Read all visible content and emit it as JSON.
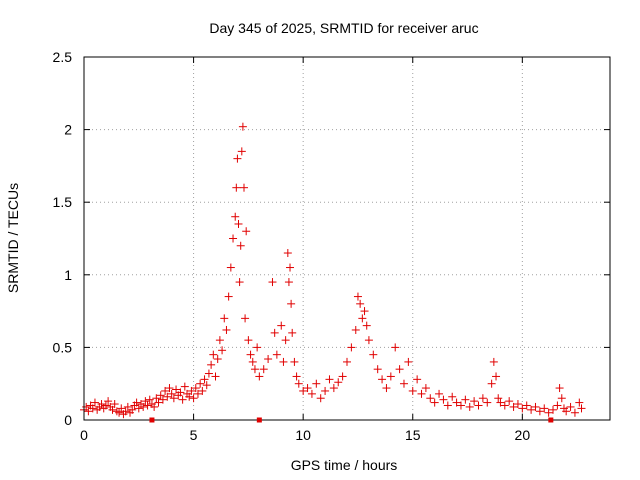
{
  "chart_data": {
    "type": "scatter",
    "title": "Day 345 of 2025, SRMTID for receiver aruc",
    "xlabel": "GPS time / hours",
    "ylabel": "SRMTID / TECUs",
    "xlim": [
      0,
      24
    ],
    "ylim": [
      0,
      2.5
    ],
    "x_ticks": [
      0,
      5,
      10,
      15,
      20
    ],
    "x_tick_labels": [
      "0",
      "5",
      "10",
      "15",
      "20"
    ],
    "y_ticks": [
      0,
      0.5,
      1,
      1.5,
      2,
      2.5
    ],
    "y_tick_labels": [
      "0",
      "0.5",
      "1",
      "1.5",
      "2",
      "2.5"
    ],
    "grid": true,
    "marker": "+",
    "series_color": "#e00000",
    "series": [
      {
        "name": "SRMTID",
        "points": [
          [
            0.0,
            0.07
          ],
          [
            0.1,
            0.09
          ],
          [
            0.2,
            0.06
          ],
          [
            0.3,
            0.1
          ],
          [
            0.4,
            0.08
          ],
          [
            0.5,
            0.12
          ],
          [
            0.6,
            0.07
          ],
          [
            0.7,
            0.09
          ],
          [
            0.8,
            0.11
          ],
          [
            0.9,
            0.08
          ],
          [
            1.0,
            0.1
          ],
          [
            1.1,
            0.13
          ],
          [
            1.2,
            0.09
          ],
          [
            1.3,
            0.07
          ],
          [
            1.4,
            0.11
          ],
          [
            1.5,
            0.06
          ],
          [
            1.6,
            0.05
          ],
          [
            1.7,
            0.08
          ],
          [
            1.8,
            0.04
          ],
          [
            1.9,
            0.06
          ],
          [
            2.0,
            0.09
          ],
          [
            2.1,
            0.05
          ],
          [
            2.2,
            0.07
          ],
          [
            2.3,
            0.1
          ],
          [
            2.4,
            0.12
          ],
          [
            2.5,
            0.08
          ],
          [
            2.6,
            0.11
          ],
          [
            2.7,
            0.09
          ],
          [
            2.8,
            0.13
          ],
          [
            2.9,
            0.1
          ],
          [
            3.0,
            0.14
          ],
          [
            3.1,
            0.11
          ],
          [
            3.2,
            0.09
          ],
          [
            3.3,
            0.15
          ],
          [
            3.4,
            0.12
          ],
          [
            3.5,
            0.17
          ],
          [
            3.6,
            0.14
          ],
          [
            3.7,
            0.2
          ],
          [
            3.8,
            0.16
          ],
          [
            3.9,
            0.22
          ],
          [
            4.0,
            0.18
          ],
          [
            4.1,
            0.15
          ],
          [
            4.2,
            0.21
          ],
          [
            4.3,
            0.17
          ],
          [
            4.4,
            0.19
          ],
          [
            4.5,
            0.14
          ],
          [
            4.6,
            0.23
          ],
          [
            4.7,
            0.18
          ],
          [
            4.8,
            0.16
          ],
          [
            4.9,
            0.2
          ],
          [
            5.0,
            0.15
          ],
          [
            5.1,
            0.22
          ],
          [
            5.2,
            0.18
          ],
          [
            5.3,
            0.25
          ],
          [
            5.4,
            0.2
          ],
          [
            5.5,
            0.28
          ],
          [
            5.6,
            0.24
          ],
          [
            5.7,
            0.32
          ],
          [
            5.8,
            0.38
          ],
          [
            5.9,
            0.45
          ],
          [
            6.0,
            0.3
          ],
          [
            6.1,
            0.42
          ],
          [
            6.2,
            0.55
          ],
          [
            6.3,
            0.48
          ],
          [
            6.4,
            0.7
          ],
          [
            6.5,
            0.62
          ],
          [
            6.6,
            0.85
          ],
          [
            6.7,
            1.05
          ],
          [
            6.8,
            1.25
          ],
          [
            6.9,
            1.4
          ],
          [
            6.95,
            1.6
          ],
          [
            7.0,
            1.8
          ],
          [
            7.05,
            1.35
          ],
          [
            7.1,
            0.95
          ],
          [
            7.15,
            1.2
          ],
          [
            7.2,
            1.85
          ],
          [
            7.25,
            2.02
          ],
          [
            7.3,
            1.6
          ],
          [
            7.35,
            0.7
          ],
          [
            7.4,
            1.3
          ],
          [
            7.5,
            0.55
          ],
          [
            7.6,
            0.45
          ],
          [
            7.7,
            0.4
          ],
          [
            7.8,
            0.35
          ],
          [
            7.9,
            0.5
          ],
          [
            8.0,
            0.3
          ],
          [
            8.2,
            0.35
          ],
          [
            8.4,
            0.42
          ],
          [
            8.6,
            0.95
          ],
          [
            8.7,
            0.6
          ],
          [
            8.8,
            0.45
          ],
          [
            9.0,
            0.65
          ],
          [
            9.1,
            0.4
          ],
          [
            9.2,
            0.55
          ],
          [
            9.3,
            1.15
          ],
          [
            9.35,
            0.95
          ],
          [
            9.4,
            1.05
          ],
          [
            9.45,
            0.8
          ],
          [
            9.5,
            0.6
          ],
          [
            9.6,
            0.4
          ],
          [
            9.7,
            0.3
          ],
          [
            9.8,
            0.25
          ],
          [
            10.0,
            0.2
          ],
          [
            10.2,
            0.22
          ],
          [
            10.4,
            0.18
          ],
          [
            10.6,
            0.25
          ],
          [
            10.8,
            0.15
          ],
          [
            11.0,
            0.2
          ],
          [
            11.2,
            0.28
          ],
          [
            11.4,
            0.22
          ],
          [
            11.6,
            0.26
          ],
          [
            11.8,
            0.3
          ],
          [
            12.0,
            0.4
          ],
          [
            12.2,
            0.5
          ],
          [
            12.4,
            0.62
          ],
          [
            12.5,
            0.85
          ],
          [
            12.6,
            0.8
          ],
          [
            12.7,
            0.7
          ],
          [
            12.8,
            0.75
          ],
          [
            12.9,
            0.65
          ],
          [
            13.0,
            0.55
          ],
          [
            13.2,
            0.45
          ],
          [
            13.4,
            0.35
          ],
          [
            13.6,
            0.28
          ],
          [
            13.8,
            0.22
          ],
          [
            14.0,
            0.3
          ],
          [
            14.2,
            0.5
          ],
          [
            14.4,
            0.35
          ],
          [
            14.6,
            0.25
          ],
          [
            14.8,
            0.4
          ],
          [
            15.0,
            0.2
          ],
          [
            15.2,
            0.28
          ],
          [
            15.4,
            0.18
          ],
          [
            15.6,
            0.22
          ],
          [
            15.8,
            0.15
          ],
          [
            16.0,
            0.12
          ],
          [
            16.2,
            0.18
          ],
          [
            16.4,
            0.14
          ],
          [
            16.6,
            0.1
          ],
          [
            16.8,
            0.16
          ],
          [
            17.0,
            0.12
          ],
          [
            17.2,
            0.1
          ],
          [
            17.4,
            0.14
          ],
          [
            17.6,
            0.09
          ],
          [
            17.8,
            0.13
          ],
          [
            18.0,
            0.1
          ],
          [
            18.2,
            0.15
          ],
          [
            18.4,
            0.12
          ],
          [
            18.6,
            0.25
          ],
          [
            18.7,
            0.4
          ],
          [
            18.8,
            0.3
          ],
          [
            18.9,
            0.15
          ],
          [
            19.0,
            0.12
          ],
          [
            19.2,
            0.1
          ],
          [
            19.4,
            0.13
          ],
          [
            19.6,
            0.09
          ],
          [
            19.8,
            0.11
          ],
          [
            20.0,
            0.08
          ],
          [
            20.2,
            0.1
          ],
          [
            20.4,
            0.07
          ],
          [
            20.6,
            0.09
          ],
          [
            20.8,
            0.06
          ],
          [
            21.0,
            0.08
          ],
          [
            21.2,
            0.05
          ],
          [
            21.4,
            0.07
          ],
          [
            21.6,
            0.1
          ],
          [
            21.7,
            0.22
          ],
          [
            21.8,
            0.15
          ],
          [
            21.9,
            0.08
          ],
          [
            22.0,
            0.06
          ],
          [
            22.2,
            0.09
          ],
          [
            22.4,
            0.05
          ],
          [
            22.6,
            0.12
          ],
          [
            22.7,
            0.08
          ]
        ]
      }
    ],
    "axis_markers_x": [
      3.1,
      8.0,
      21.3
    ]
  }
}
